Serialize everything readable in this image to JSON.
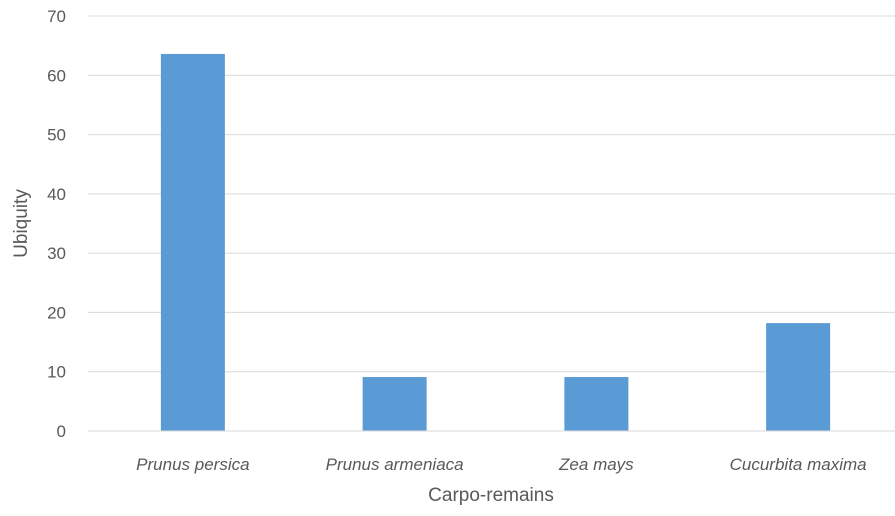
{
  "chart_data": {
    "type": "bar",
    "title": "",
    "xlabel": "Carpo-remains",
    "ylabel": "Ubiquity",
    "categories": [
      "Prunus persica",
      "Prunus armeniaca",
      "Zea mays",
      "Cucurbita maxima"
    ],
    "series": [
      {
        "values": [
          63.6,
          9.1,
          9.1,
          18.2
        ]
      }
    ],
    "ylim": [
      0,
      70
    ],
    "yticks": [
      "0",
      "10",
      "20",
      "30",
      "40",
      "50",
      "60",
      "70"
    ],
    "grid": true,
    "legend": "none",
    "bar_color": "#5b9bd5",
    "grid_color": "#d9d9d9"
  }
}
